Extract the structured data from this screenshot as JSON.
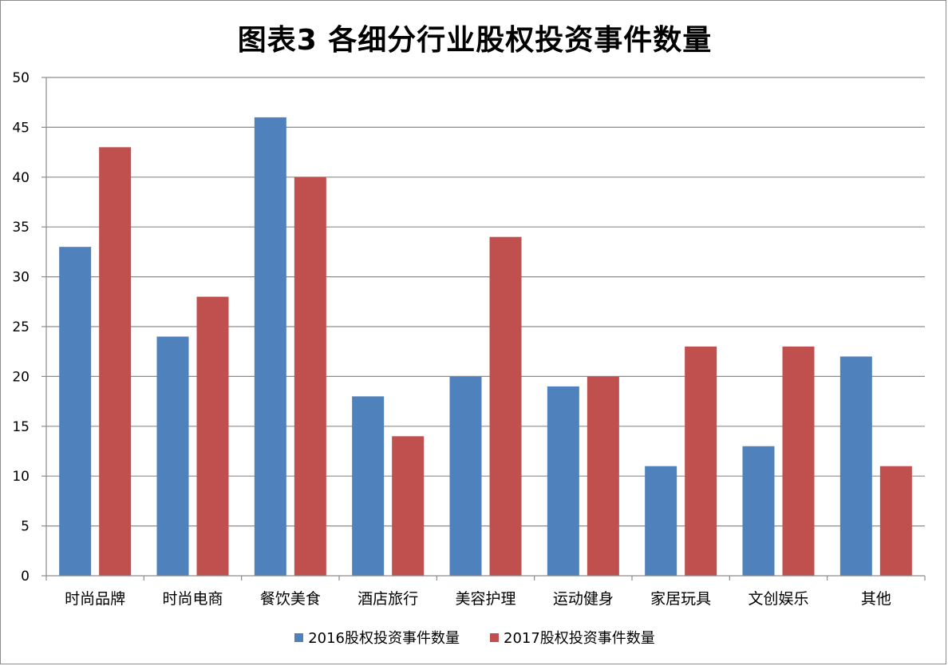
{
  "chart_data": {
    "type": "bar",
    "title": "图表3 各细分行业股权投资事件数量",
    "categories": [
      "时尚品牌",
      "时尚电商",
      "餐饮美食",
      "酒店旅行",
      "美容护理",
      "运动健身",
      "家居玩具",
      "文创娱乐",
      "其他"
    ],
    "series": [
      {
        "name": "2016股权投资事件数量",
        "color": "#4f81bd",
        "values": [
          33,
          24,
          46,
          18,
          20,
          19,
          11,
          13,
          22
        ]
      },
      {
        "name": "2017股权投资事件数量",
        "color": "#c0504d",
        "values": [
          43,
          28,
          40,
          14,
          34,
          20,
          23,
          23,
          11
        ]
      }
    ],
    "ylim": [
      0,
      50
    ],
    "yticks": [
      0,
      5,
      10,
      15,
      20,
      25,
      30,
      35,
      40,
      45,
      50
    ],
    "grid": true,
    "legend_position": "bottom"
  }
}
